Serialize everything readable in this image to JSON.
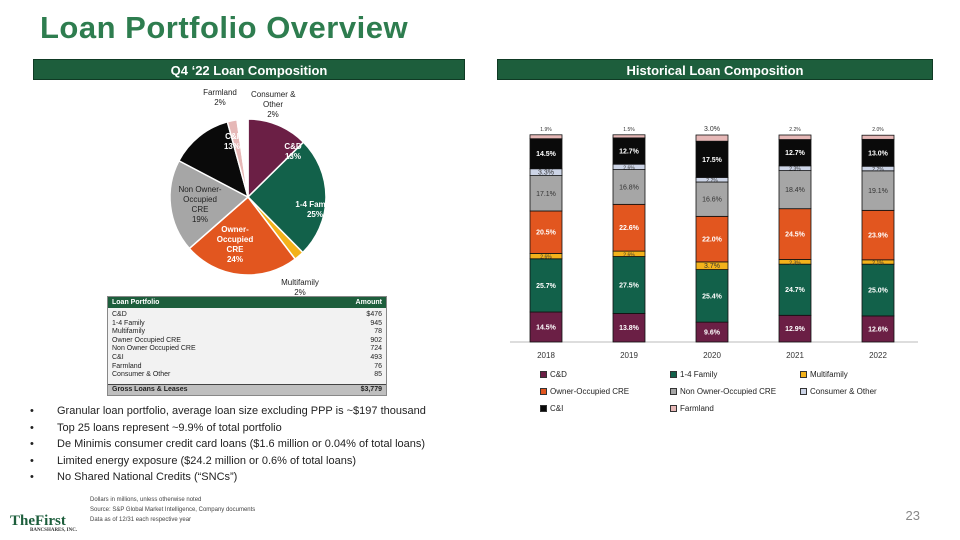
{
  "title": "Loan Portfolio Overview",
  "left_header": "Q4 ‘22 Loan Composition",
  "right_header": "Historical Loan Composition",
  "pie": [
    {
      "name": "C&D",
      "label": "C&D\n13%",
      "amount": 476,
      "color": "#6b1f45",
      "text": "#fff"
    },
    {
      "name": "1-4 Family",
      "label": "1-4 Family\n25%",
      "amount": 945,
      "color": "#12614a",
      "text": "#fff"
    },
    {
      "name": "Multifamily",
      "label": "Multifamily\n2%",
      "amount": 78,
      "color": "#f3b21b",
      "text": "#222"
    },
    {
      "name": "Owner-Occupied CRE",
      "label": "Owner-\nOccupied\nCRE\n24%",
      "amount": 902,
      "color": "#e2561f",
      "text": "#fff"
    },
    {
      "name": "Non Owner-Occupied CRE",
      "label": "Non Owner-\nOccupied\nCRE\n19%",
      "amount": 724,
      "color": "#a6a6a6",
      "text": "#222"
    },
    {
      "name": "C&I",
      "label": "C&I\n13%",
      "amount": 493,
      "color": "#0a0a0a",
      "text": "#fff"
    },
    {
      "name": "Farmland",
      "label": "Farmland\n2%",
      "amount": 76,
      "color": "#e6b8b7",
      "text": "#222"
    },
    {
      "name": "Consumer & Other",
      "label": "Consumer &\nOther\n2%",
      "amount": 85,
      "color": "#ffffff",
      "text": "#222"
    }
  ],
  "table": {
    "col1": "Loan Portfolio",
    "col2": "Amount",
    "rows": [
      [
        "C&D",
        "$476"
      ],
      [
        "1-4 Family",
        "945"
      ],
      [
        "Multifamily",
        "78"
      ],
      [
        "Owner Occupied CRE",
        "902"
      ],
      [
        "Non Owner Occupied CRE",
        "724"
      ],
      [
        "C&I",
        "493"
      ],
      [
        "Farmland",
        "76"
      ],
      [
        "Consumer & Other",
        "85"
      ]
    ],
    "total": [
      "Gross Loans & Leases",
      "$3,779"
    ]
  },
  "bullets": [
    "Granular loan portfolio, average loan size excluding PPP is ~$197 thousand",
    "Top 25 loans represent ~9.9% of total portfolio",
    "De Minimis consumer credit card loans ($1.6 million or 0.04% of total loans)",
    "Limited energy exposure ($24.2 million or 0.6% of total loans)",
    "No Shared National Credits (“SNCs”)"
  ],
  "chart_data": {
    "type": "bar",
    "stacked": true,
    "categories": [
      "2018",
      "2019",
      "2020",
      "2021",
      "2022"
    ],
    "series": [
      {
        "name": "C&D",
        "color": "#6b1f45",
        "values": [
          14.5,
          13.8,
          9.6,
          12.9,
          12.6
        ]
      },
      {
        "name": "1-4 Family",
        "color": "#12614a",
        "values": [
          25.7,
          27.5,
          25.4,
          24.7,
          25.0
        ]
      },
      {
        "name": "Multifamily",
        "color": "#f3b21b",
        "values": [
          2.6,
          2.6,
          3.7,
          2.3,
          2.1
        ]
      },
      {
        "name": "Owner-Occupied CRE",
        "color": "#e2561f",
        "values": [
          20.5,
          22.6,
          22.0,
          24.5,
          23.9
        ]
      },
      {
        "name": "Non Owner-Occupied CRE",
        "color": "#a6a6a6",
        "values": [
          17.1,
          16.8,
          16.6,
          18.4,
          19.1
        ]
      },
      {
        "name": "Consumer & Other",
        "color": "#ccd4e6",
        "values": [
          3.3,
          2.6,
          2.2,
          2.3,
          2.2
        ]
      },
      {
        "name": "C&I",
        "color": "#0a0a0a",
        "values": [
          14.5,
          12.7,
          17.5,
          12.7,
          13.0
        ]
      },
      {
        "name": "Farmland",
        "color": "#e6b8b7",
        "values": [
          1.9,
          1.5,
          3.0,
          2.2,
          2.0
        ]
      }
    ],
    "legend_order": [
      "C&D",
      "1-4 Family",
      "Multifamily",
      "Owner-Occupied CRE",
      "Non Owner-Occupied CRE",
      "Consumer & Other",
      "C&I",
      "Farmland"
    ],
    "ylim": [
      0,
      100
    ],
    "legend": "bottom"
  },
  "footnotes": [
    "Dollars in millions, unless otherwise noted",
    "Source: S&P Global Market Intelligence, Company documents",
    "Data as of 12/31 each respective year"
  ],
  "logo": {
    "name": "TheFirst",
    "sub": "BANCSHARES, INC."
  },
  "page_number": "23"
}
